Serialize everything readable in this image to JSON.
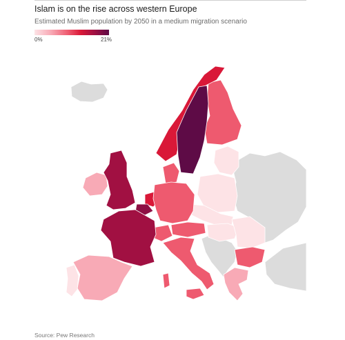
{
  "header": {
    "title": "Islam is on the rise across western Europe",
    "subtitle": "Estimated Muslim population by 2050 in a medium migration scenario"
  },
  "legend": {
    "min_label": "0%",
    "max_label": "21%",
    "colors": [
      "#fde3e6",
      "#f8aab6",
      "#ee5a6f",
      "#d91838",
      "#a11042",
      "#5e0b46"
    ]
  },
  "map": {
    "no_data_color": "#dcdcdc",
    "regions": [
      {
        "name": "sweden",
        "color": "#5e0b46"
      },
      {
        "name": "norway",
        "color": "#d91838"
      },
      {
        "name": "finland",
        "color": "#ee5a6f"
      },
      {
        "name": "united-kingdom",
        "color": "#a11042"
      },
      {
        "name": "france",
        "color": "#a11042"
      },
      {
        "name": "belgium",
        "color": "#8e1044"
      },
      {
        "name": "netherlands",
        "color": "#d91838"
      },
      {
        "name": "germany",
        "color": "#ee5a6f"
      },
      {
        "name": "denmark",
        "color": "#ee5a6f"
      },
      {
        "name": "austria",
        "color": "#ee5a6f"
      },
      {
        "name": "switzerland",
        "color": "#ee5a6f"
      },
      {
        "name": "italy",
        "color": "#ee5a6f"
      },
      {
        "name": "spain",
        "color": "#f8aab6"
      },
      {
        "name": "portugal",
        "color": "#fde3e6"
      },
      {
        "name": "ireland",
        "color": "#f8aab6"
      },
      {
        "name": "bulgaria",
        "color": "#ee5a6f"
      },
      {
        "name": "greece",
        "color": "#f8aab6"
      },
      {
        "name": "poland",
        "color": "#fde3e6"
      },
      {
        "name": "baltics",
        "color": "#fde3e6"
      },
      {
        "name": "czechia",
        "color": "#fde3e6"
      },
      {
        "name": "hungary",
        "color": "#fde3e6"
      },
      {
        "name": "romania",
        "color": "#fde3e6"
      },
      {
        "name": "balkans",
        "color": "#dcdcdc"
      },
      {
        "name": "iceland",
        "color": "#dcdcdc"
      },
      {
        "name": "eastern-europe",
        "color": "#dcdcdc"
      },
      {
        "name": "turkey",
        "color": "#dcdcdc"
      }
    ]
  },
  "footer": {
    "source": "Source: Pew Research"
  }
}
